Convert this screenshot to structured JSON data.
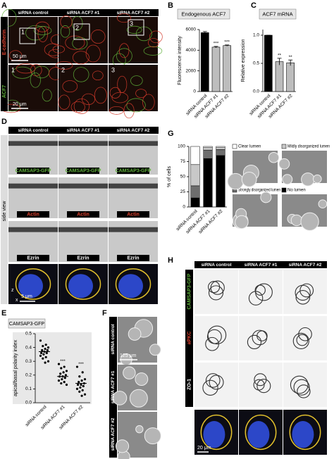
{
  "panels": {
    "A": {
      "label": "A",
      "columns": [
        "siRNA control",
        "siRNA ACF7 #1",
        "siRNA ACF7 #2"
      ],
      "channels": [
        "ACF7",
        "E-cadherin"
      ],
      "insets": [
        "1",
        "2",
        "3"
      ],
      "scale_bars": [
        "50 μm",
        "20 μm"
      ]
    },
    "B": {
      "label": "B",
      "chart": {
        "type": "bar",
        "title": "Endogenous ACF7",
        "y_label": "Fluorescence intensity",
        "categories": [
          "siRNA control",
          "siRNA ACF7 #1",
          "siRNA ACF7 #2"
        ],
        "values": [
          5700,
          4300,
          4450
        ],
        "errors": [
          110,
          70,
          60
        ],
        "colors": [
          "#000000",
          "#bdbdbd",
          "#bdbdbd"
        ],
        "significance": [
          null,
          "***",
          "***"
        ],
        "ylim": [
          0,
          6000
        ],
        "yticks": [
          0,
          2000,
          4000,
          6000
        ]
      }
    },
    "C": {
      "label": "C",
      "chart": {
        "type": "bar",
        "title": "ACF7 mRNA",
        "y_label": "Relative expression",
        "categories": [
          "siRNA control",
          "siRNA ACF7 #1",
          "siRNA ACF7 #2"
        ],
        "values": [
          1.0,
          0.53,
          0.51
        ],
        "errors": [
          0,
          0.06,
          0.05
        ],
        "colors": [
          "#000000",
          "#bdbdbd",
          "#bdbdbd"
        ],
        "significance": [
          null,
          "**",
          "**"
        ],
        "ylim": [
          0,
          1.1
        ],
        "yticks": [
          {
            "value": 0,
            "label": "0.0"
          },
          {
            "value": 0.5,
            "label": "0.5"
          },
          {
            "value": 1,
            "label": "1.0"
          }
        ]
      }
    },
    "D": {
      "label": "D",
      "columns": [
        "siRNA control",
        "siRNA ACF7 #1",
        "siRNA ACF7 #2"
      ],
      "view": "side view",
      "channels": [
        "CAMSAP3-GFP",
        "Actin",
        "Ezrin"
      ],
      "axes": [
        "z",
        "x"
      ],
      "scale_bar": "5 μm"
    },
    "E": {
      "label": "E",
      "chart": {
        "type": "strip",
        "title": "CAMSAP3-GFP",
        "y_label": "apical/basal polarity index",
        "categories": [
          "siRNA control",
          "siRNA ACF7 #1",
          "siRNA ACF7 #2"
        ],
        "series": [
          {
            "values": [
              0.45,
              0.42,
              0.41,
              0.4,
              0.39,
              0.38,
              0.38,
              0.37,
              0.36,
              0.36,
              0.35,
              0.34,
              0.33,
              0.32,
              0.3,
              0.29
            ]
          },
          {
            "values": [
              0.28,
              0.26,
              0.25,
              0.23,
              0.22,
              0.21,
              0.2,
              0.19,
              0.19,
              0.18,
              0.17,
              0.16,
              0.15,
              0.14,
              0.13
            ]
          },
          {
            "values": [
              0.26,
              0.22,
              0.19,
              0.17,
              0.16,
              0.15,
              0.14,
              0.13,
              0.13,
              0.12,
              0.11,
              0.1,
              0.09,
              0.08,
              0.06,
              0.05
            ]
          }
        ],
        "means": [
          0.37,
          0.19,
          0.14
        ],
        "significance": [
          null,
          "***",
          "***"
        ],
        "ylim": [
          0,
          0.5
        ],
        "yticks": [
          {
            "value": 0,
            "label": "0.0"
          },
          {
            "value": 0.1,
            "label": "0.1"
          },
          {
            "value": 0.2,
            "label": "0.2"
          },
          {
            "value": 0.3,
            "label": "0.3"
          },
          {
            "value": 0.4,
            "label": "0.4"
          },
          {
            "value": 0.5,
            "label": "0.5"
          }
        ]
      }
    },
    "F": {
      "label": "F",
      "rows": [
        "siRNA control",
        "siRNA ACF7 #1",
        "siRNA ACF7 #2"
      ],
      "scale_bar": "125 μm"
    },
    "G": {
      "label": "G",
      "chart": {
        "type": "stacked_bar",
        "y_label": "% of cells",
        "categories": [
          "siRNA control",
          "siRNA ACF7 #1",
          "siRNA ACF7 #2"
        ],
        "series": [
          {
            "name": "No lumen",
            "color": "#000000",
            "values": [
              15,
              80,
              85
            ]
          },
          {
            "name": "Strongly disorganized lumen",
            "color": "#6e6e6e",
            "values": [
              20,
              14,
              10
            ]
          },
          {
            "name": "Mildly disorganized lumen",
            "color": "#c8c8c8",
            "values": [
              35,
              4,
              3
            ]
          },
          {
            "name": "Clear lumen",
            "color": "#ffffff",
            "values": [
              30,
              2,
              2
            ]
          }
        ],
        "ylim": [
          0,
          100
        ],
        "yticks": [
          0,
          25,
          50,
          75,
          100
        ]
      }
    },
    "H": {
      "label": "H",
      "columns": [
        "siRNA control",
        "siRNA ACF7 #1",
        "siRNA ACF7 #2"
      ],
      "channels": [
        "CAMSAP3-GFP",
        "aPKC",
        "ZO-1"
      ],
      "scale_bar": "20 μm"
    }
  }
}
